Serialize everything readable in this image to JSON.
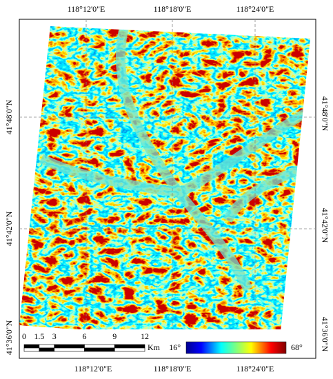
{
  "map": {
    "top_labels": [
      "118°12'0\"E",
      "118°18'0\"E",
      "118°24'0\"E"
    ],
    "bottom_labels": [
      "118°12'0\"E",
      "118°18'0\"E",
      "118°24'0\"E"
    ],
    "left_labels": [
      "41°48'0\"N",
      "41°42'0\"N",
      "41°36'0\"N"
    ],
    "right_labels": [
      "41°48'0\"N",
      "41°42'0\"N",
      "41°36'0\"N"
    ],
    "scale_bar": {
      "ticks": [
        0,
        1.5,
        3,
        6,
        9,
        12
      ],
      "unit": "Km"
    },
    "legend": {
      "min": "16°",
      "max": "68°"
    }
  }
}
